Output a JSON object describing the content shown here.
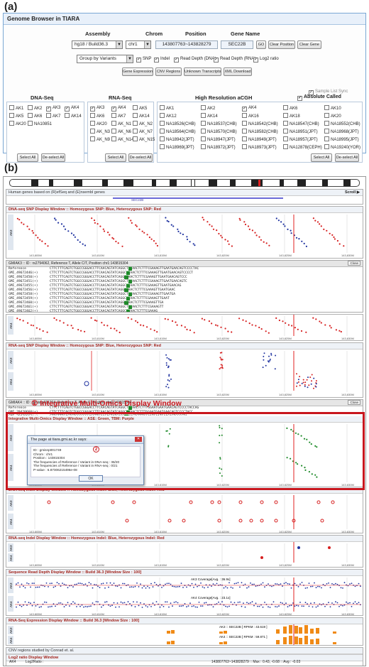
{
  "panel_a": {
    "label": "(a)",
    "title": "Genome Browser in TIARA",
    "headers": {
      "assembly": "Assembly",
      "chrom": "Chrom",
      "position": "Position",
      "gene_name": "Gene Name"
    },
    "assembly_value": "hg18 / Build36.3",
    "chrom_value": "chr1",
    "position_value": "143807763~143828279",
    "gene_value": "SEC22B",
    "buttons": {
      "go": "GO",
      "clear_position": "Clear Position",
      "clear_gene": "Clear Gene"
    },
    "group_by": "Group by Variants",
    "display_options": [
      "SNP",
      "Indel",
      "Read Depth (DNA)",
      "Read Depth (RNA)",
      "Log2 ratio"
    ],
    "action_buttons": [
      "Gene Expression",
      "CNV Regions",
      "Unknown Transcripts",
      "XML Download"
    ],
    "sample_sync": "Sample List Sync",
    "dna_seq": {
      "title": "DNA-Seq",
      "samples": [
        {
          "id": "AK1",
          "on": false
        },
        {
          "id": "AK2",
          "on": false
        },
        {
          "id": "AK3",
          "on": true
        },
        {
          "id": "AK4",
          "on": true
        },
        {
          "id": "AK5",
          "on": false
        },
        {
          "id": "AK6",
          "on": false
        },
        {
          "id": "AK7",
          "on": false
        },
        {
          "id": "AK14",
          "on": false
        },
        {
          "id": "AK20",
          "on": false
        },
        {
          "id": "NA10851",
          "on": false
        }
      ]
    },
    "rna_seq": {
      "title": "RNA-Seq",
      "samples": [
        {
          "id": "AK3",
          "on": true
        },
        {
          "id": "AK4",
          "on": true
        },
        {
          "id": "AK5",
          "on": false
        },
        {
          "id": "AK6",
          "on": false
        },
        {
          "id": "AK7",
          "on": false
        },
        {
          "id": "AK14",
          "on": false
        },
        {
          "id": "AK20",
          "on": false
        },
        {
          "id": "AK_N1",
          "on": false
        },
        {
          "id": "AK_N2",
          "on": false
        },
        {
          "id": "AK_N3",
          "on": false
        },
        {
          "id": "AK_N6",
          "on": false
        },
        {
          "id": "AK_N7",
          "on": false
        },
        {
          "id": "AK_N9",
          "on": false
        },
        {
          "id": "AK_N14",
          "on": false
        },
        {
          "id": "AK_N15",
          "on": false
        }
      ]
    },
    "acgh": {
      "title": "High Resolution aCGH",
      "samples": [
        {
          "id": "AK1",
          "on": false
        },
        {
          "id": "AK2",
          "on": false
        },
        {
          "id": "AK4",
          "on": true
        },
        {
          "id": "AK6",
          "on": false
        },
        {
          "id": "AK10",
          "on": false
        },
        {
          "id": "AK12",
          "on": false
        },
        {
          "id": "AK14",
          "on": false
        },
        {
          "id": "AK16",
          "on": false
        },
        {
          "id": "AK18",
          "on": false
        },
        {
          "id": "AK20",
          "on": false
        },
        {
          "id": "NA18526(CHB)",
          "on": false
        },
        {
          "id": "NA18537(CHB)",
          "on": false
        },
        {
          "id": "NA18542(CHB)",
          "on": false
        },
        {
          "id": "NA18547(CHB)",
          "on": false
        },
        {
          "id": "NA18552(CHB)",
          "on": false
        },
        {
          "id": "NA18564(CHB)",
          "on": false
        },
        {
          "id": "NA18570(CHB)",
          "on": false
        },
        {
          "id": "NA18582(CHB)",
          "on": false
        },
        {
          "id": "NA18951(JPT)",
          "on": false
        },
        {
          "id": "NA18968(JPT)",
          "on": false
        },
        {
          "id": "NA18942(JPT)",
          "on": false
        },
        {
          "id": "NA18947(JPT)",
          "on": false
        },
        {
          "id": "NA18949(JPT)",
          "on": false
        },
        {
          "id": "NA18957(JPT)",
          "on": false
        },
        {
          "id": "NA18995(JPT)",
          "on": false
        },
        {
          "id": "NA18969(JPT)",
          "on": false
        },
        {
          "id": "NA18972(JPT)",
          "on": false
        },
        {
          "id": "NA18973(JPT)",
          "on": false
        },
        {
          "id": "NA12878(CEPH)",
          "on": false
        },
        {
          "id": "NA19240(YOR)",
          "on": false
        }
      ]
    },
    "absolute_called": "Absolute Called",
    "select_all": "Select All",
    "deselect_all": "De-select All"
  },
  "panel_b": {
    "label": "(b)",
    "gene_bar": "Human genes based on  (R)efSeq and  (E)nsembl genes",
    "scroll": "Scroll",
    "gene_label": "SEC22B",
    "axis_ticks": [
      "143,805M",
      "143,810M",
      "143,815M",
      "143,820M",
      "143,825M",
      "143,830M"
    ],
    "dna_snp_title": "DNA-seq SNP Display Window :: Homozygous SNP: Blue, Heterozygous SNP: Red",
    "gmiak3_header": "GMIAK3 :: ID : rs2794062, Reference T, Allele C/T, Position chr1:143815304",
    "rna_snp_title": "RNA-seq SNP Display Window :: Homozygous SNP: Blue, Heterozygous SNP: Red",
    "gmiak4_header": "GMIAK4 :: ID : gmisnp011204, Reference T, Allele C, Position chr1:143815304",
    "close": "Close",
    "reference": "Reference",
    "callout": "① Integrative Multi-Omics Display Window",
    "multi_omics_title": "Integrative Multi-Omics Display Window :: ASE: Green, TBM: Purple",
    "dialog": {
      "title": "The page at tiara.gmi.ac.kr says:",
      "lines": [
        "ID : gmisnp001749",
        "Chrom : chr1",
        "Position : 143815304",
        "The frequencies of Reference / Variant in DNA-seq : 36/20",
        "The frequencies of Reference / Variant in RNA-seq : 0/21",
        "P-value : 6.87306215496e-08"
      ],
      "ok": "OK",
      "marker": "2"
    },
    "dna_indel_title": "DNA-seq Indel Display Window :: Homozygous Indel: Blue, Heterozygous Indel: Red",
    "rna_indel_title": "RNA-seq Indel Display Window :: Homozygous Indel: Blue, Heterozygous Indel: Red",
    "read_depth_title": "Sequence Read Depth Display Window :: Build 36.3 [Window Size : 100]",
    "ak3_cov": "AK3 Coverage[Avg. : 36.9x]",
    "ak4_cov": "AK4 Coverage[Avg. : 23.1x]",
    "rna_expr_title": "RNA-Seq Expression Display Window :: Build 36.3 [Window Size : 100]",
    "ak3_rpkm": "AK3 :: SEC22B [ RPKM : 43.619 ]",
    "ak4_rpkm": "AK4 :: SEC22B [ RPKM : 59.871 ]",
    "cnv_title": "CNV regions studied by Conrad et. al.",
    "log2_title": "Log2 ratio Display Window",
    "log2_sample": "AK4",
    "log2_ratio_label": "Log2Ratio :",
    "log2_summary": "143807763~143828279 :: Max : 0.43, -0.68 :: Avg : -0.03",
    "track_labels": [
      "AK3",
      "AK4"
    ]
  },
  "colors": {
    "accent_red": "#c8171e",
    "hetero_red": "#d62020",
    "homo_blue": "#2033a0",
    "ase_green": "#1f8a2a",
    "expression_orange": "#f08a16"
  }
}
